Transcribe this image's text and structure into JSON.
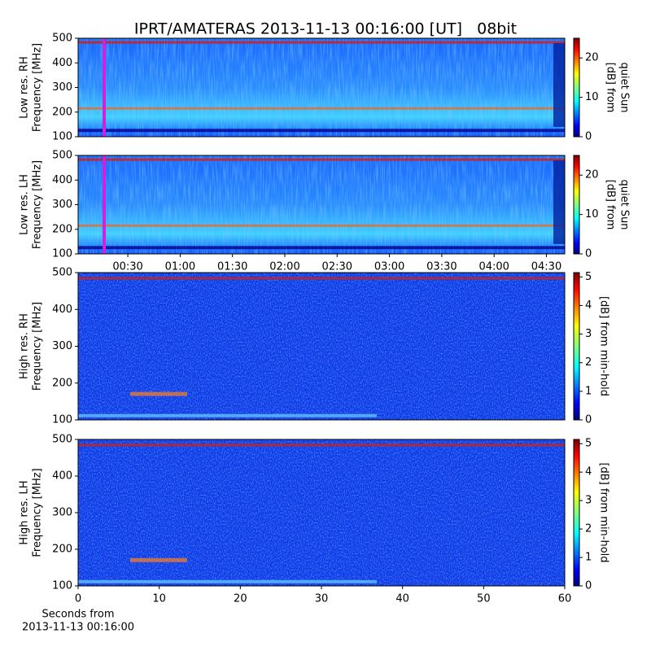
{
  "chart_data": [
    {
      "type": "heatmap",
      "title": "IPRT/AMATERAS 2013-11-13 00:16:00 [UT]   08bit",
      "ylabel": [
        "Low res. RH",
        "Frequency [MHz]"
      ],
      "ylim": [
        100,
        500
      ],
      "yticks": [
        100,
        200,
        300,
        400,
        500
      ],
      "colormap": "jet",
      "colorbar": {
        "label": [
          "[dB] from",
          "quiet Sun"
        ],
        "lim": [
          0,
          25
        ],
        "ticks": [
          0,
          10,
          20
        ]
      }
    },
    {
      "type": "heatmap",
      "ylabel": [
        "Low res. LH",
        "Frequency [MHz]"
      ],
      "ylim": [
        100,
        500
      ],
      "yticks": [
        100,
        200,
        300,
        400,
        500
      ],
      "xlim": [
        1.5,
        280.5
      ],
      "xticks": [
        {
          "value": 30,
          "label": "00:30"
        },
        {
          "value": 60,
          "label": "01:00"
        },
        {
          "value": 90,
          "label": "01:30"
        },
        {
          "value": 120,
          "label": "02:00"
        },
        {
          "value": 150,
          "label": "02:30"
        },
        {
          "value": 180,
          "label": "03:00"
        },
        {
          "value": 210,
          "label": "03:30"
        },
        {
          "value": 240,
          "label": "04:00"
        },
        {
          "value": 270,
          "label": "04:30"
        }
      ],
      "colormap": "jet",
      "colorbar": {
        "label": [
          "[dB] from",
          "quiet Sun"
        ],
        "lim": [
          0,
          25
        ],
        "ticks": [
          0,
          10,
          20
        ]
      }
    },
    {
      "type": "heatmap",
      "ylabel": [
        "High res. RH",
        "Frequency [MHz]"
      ],
      "ylim": [
        100,
        500
      ],
      "yticks": [
        100,
        200,
        300,
        400,
        500
      ],
      "colormap": "jet",
      "colorbar": {
        "label": [
          "[dB] from min-hold"
        ],
        "lim": [
          0,
          5.15
        ],
        "ticks": [
          0,
          1,
          2,
          3,
          4,
          5
        ]
      }
    },
    {
      "type": "heatmap",
      "ylabel": [
        "High res. LH",
        "Frequency [MHz]"
      ],
      "ylim": [
        100,
        500
      ],
      "yticks": [
        100,
        200,
        300,
        400,
        500
      ],
      "xlim": [
        0,
        60
      ],
      "xticks": [
        0,
        10,
        20,
        30,
        40,
        50,
        60
      ],
      "xlabel": [
        "Seconds from",
        "2013-11-13 00:16:00"
      ],
      "colormap": "jet",
      "colorbar": {
        "label": [
          "[dB] from min-hold"
        ],
        "lim": [
          0,
          5.15
        ],
        "ticks": [
          0,
          1,
          2,
          3,
          4,
          5
        ]
      }
    }
  ]
}
